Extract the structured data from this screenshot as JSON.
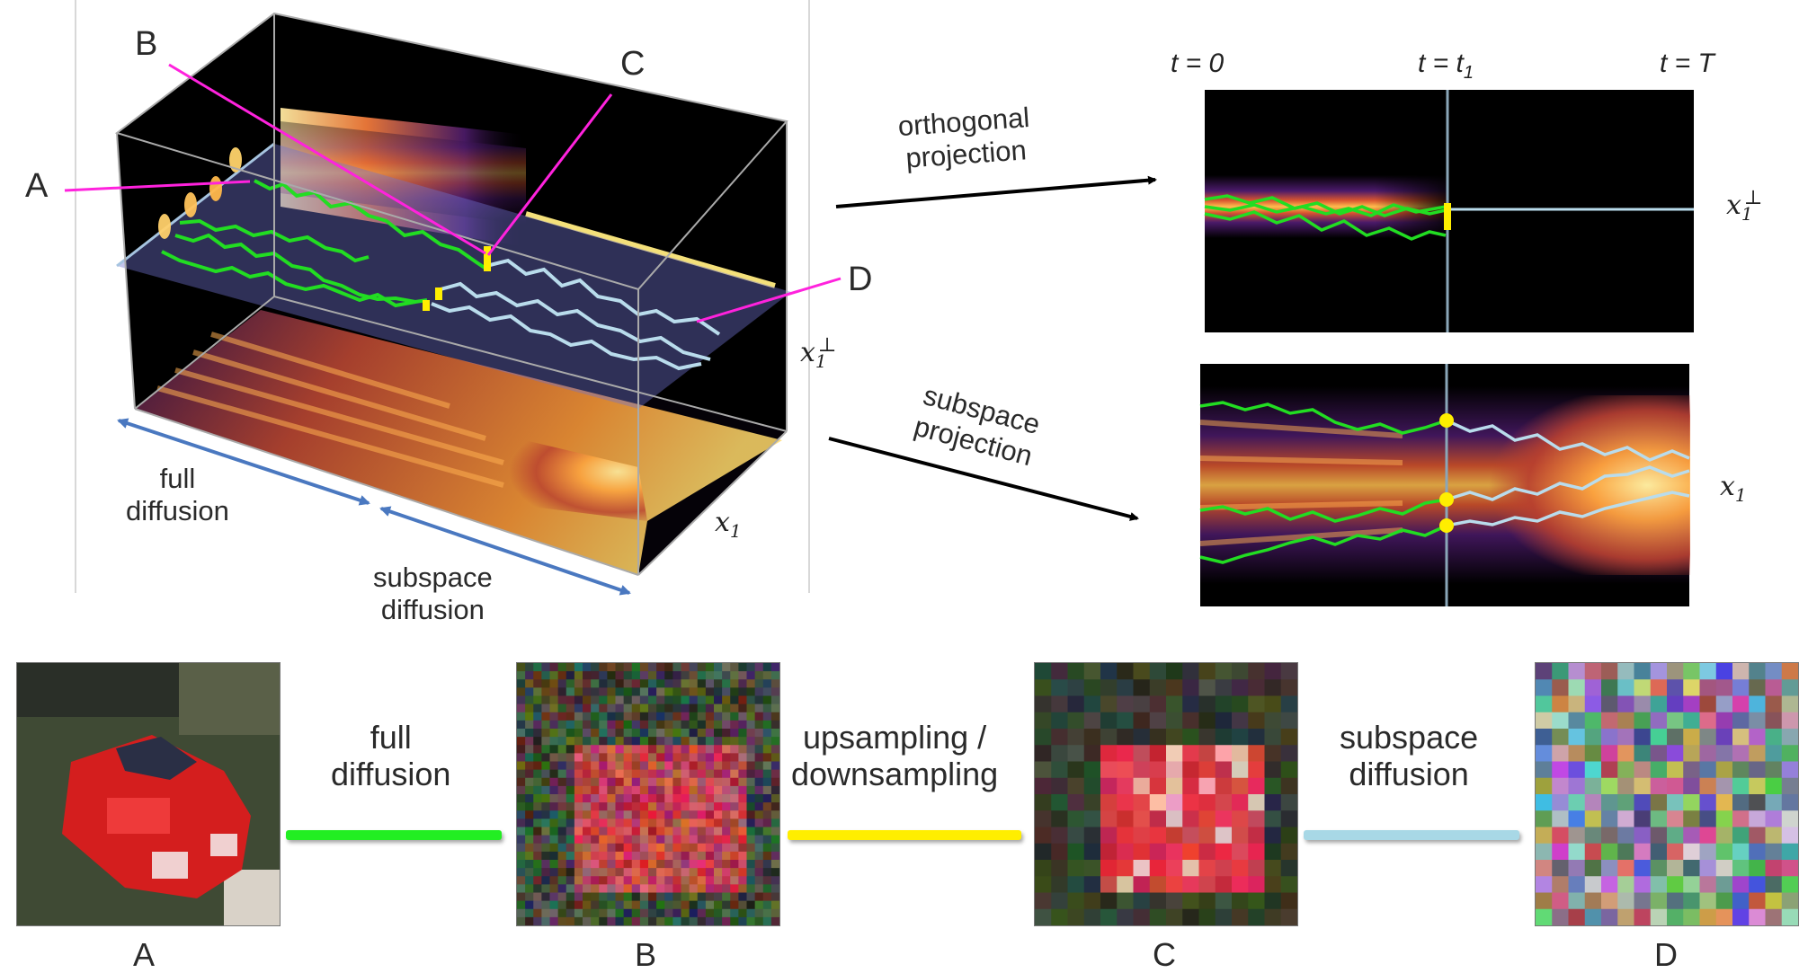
{
  "cube_labels": {
    "A": "A",
    "B": "B",
    "C": "C",
    "D": "D"
  },
  "axes": {
    "x1": "x",
    "x1_sub": "1",
    "perp": "⊥"
  },
  "left_arrows": {
    "full": "full\ndiffusion",
    "subspace": "subspace\ndiffusion"
  },
  "projections": {
    "orthogonal": "orthogonal\nprojection",
    "subspace": "subspace\nprojection"
  },
  "time_labels": {
    "t0": "t = 0",
    "t1": "t = t",
    "t1_sub": "1",
    "T": "t = T"
  },
  "bottom": {
    "captions": [
      "A",
      "B",
      "C",
      "D"
    ],
    "connectors": [
      {
        "label": "full\ndiffusion",
        "color": "#22ee22"
      },
      {
        "label": "upsampling /\ndownsampling",
        "color": "#ffee00"
      },
      {
        "label": "subspace\ndiffusion",
        "color": "#a8d8e6"
      }
    ]
  },
  "colors": {
    "green_path": "#22dd22",
    "light_blue_path": "#b9dcec",
    "yellow_marker": "#ffee00",
    "magenta_pointer": "#ff22dd",
    "blue_arrow": "#4a78c0"
  }
}
